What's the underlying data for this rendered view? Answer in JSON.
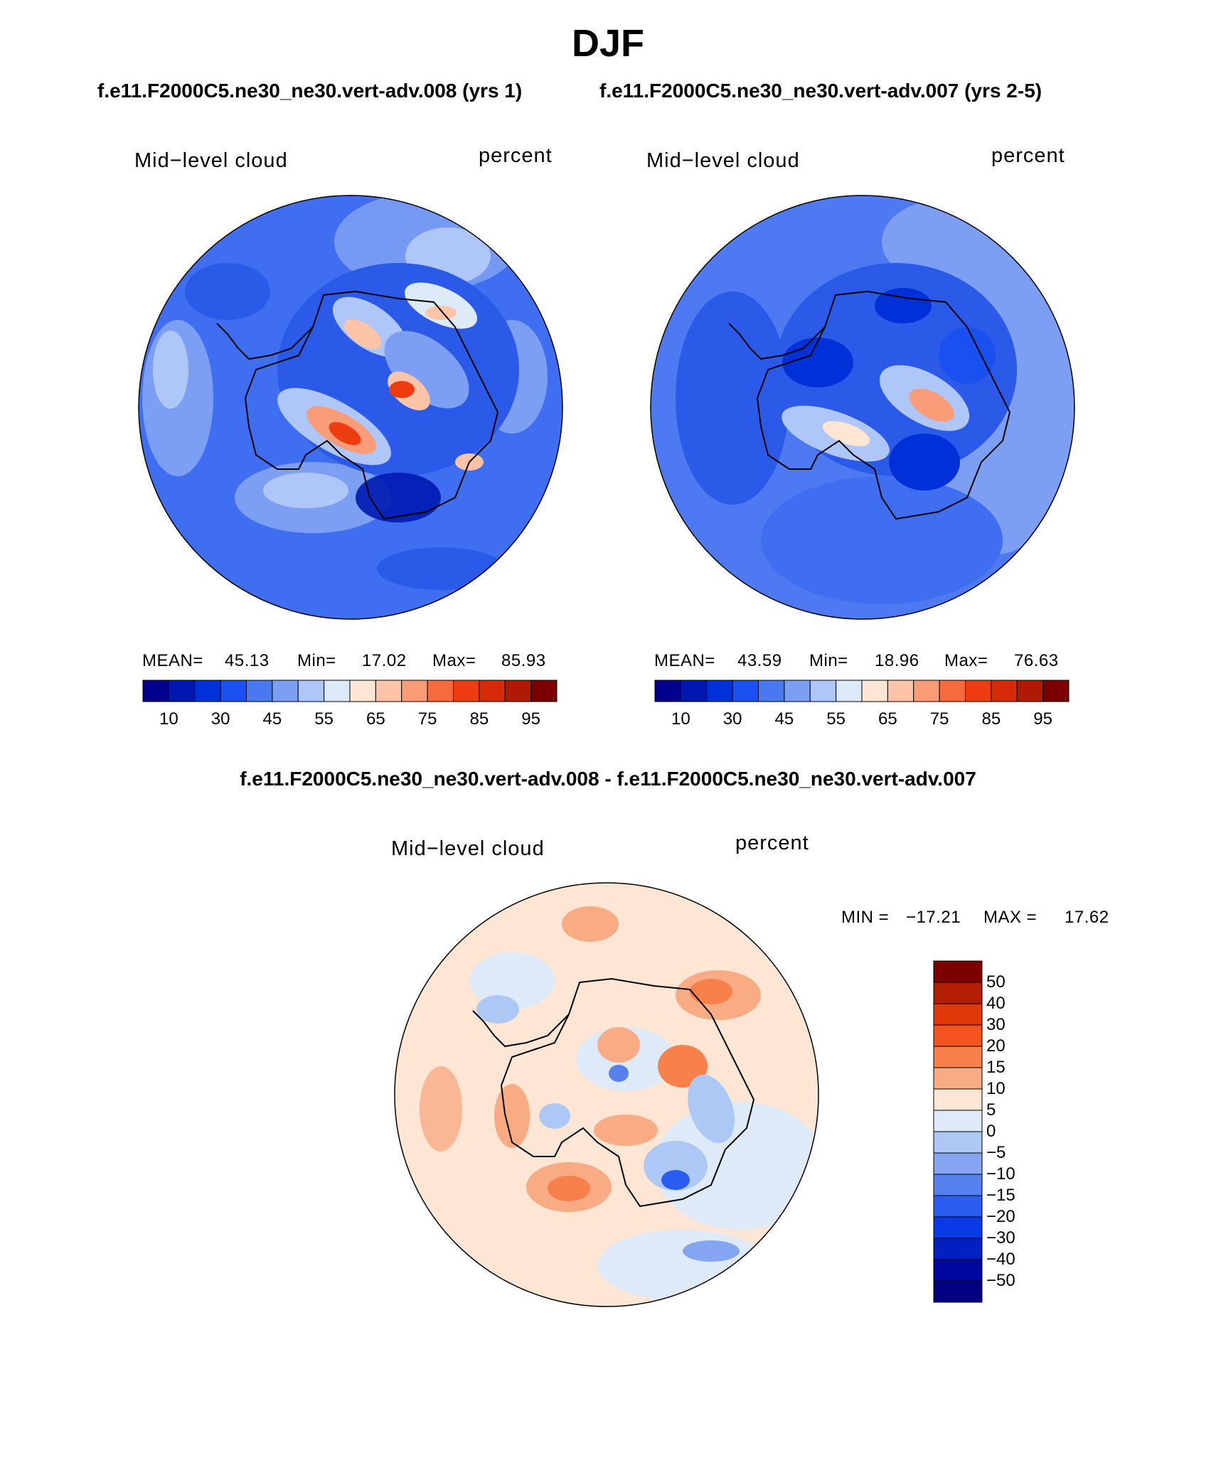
{
  "title": "DJF",
  "case_titles": {
    "left": "f.e11.F2000C5.ne30_ne30.vert-adv.008 (yrs 1)",
    "right": "f.e11.F2000C5.ne30_ne30.vert-adv.007 (yrs 2-5)"
  },
  "diff_title": "f.e11.F2000C5.ne30_ne30.vert-adv.008 - f.e11.F2000C5.ne30_ne30.vert-adv.007",
  "panels": [
    {
      "variable": "Mid−level cloud",
      "units": "percent",
      "stats": {
        "mean_label": "MEAN=",
        "mean": "45.13",
        "min_label": "Min=",
        "min": "17.02",
        "max_label": "Max=",
        "max": "85.93"
      }
    },
    {
      "variable": "Mid−level cloud",
      "units": "percent",
      "stats": {
        "mean_label": "MEAN=",
        "mean": "43.59",
        "min_label": "Min=",
        "min": "18.96",
        "max_label": "Max=",
        "max": "76.63"
      }
    },
    {
      "variable": "Mid−level cloud",
      "units": "percent",
      "stats": {
        "min_label": "MIN =",
        "min": "−17.21",
        "max_label": "MAX =",
        "max": "17.62"
      }
    }
  ],
  "abs_colorbar": {
    "colors": [
      "#00008c",
      "#0018b0",
      "#0030d8",
      "#1a50f0",
      "#4a78f0",
      "#7c9ff4",
      "#aec6f8",
      "#ddeaf8",
      "#fde6d2",
      "#fdc4a8",
      "#fa9c78",
      "#f66a3c",
      "#ed3c10",
      "#d42a08",
      "#ae1a04",
      "#7d0000"
    ],
    "tick_labels": [
      "10",
      "30",
      "45",
      "55",
      "65",
      "75",
      "85",
      "95"
    ]
  },
  "diff_colorbar": {
    "colors": [
      "#7d0000",
      "#b21e04",
      "#e03806",
      "#f45520",
      "#f8804a",
      "#f9ab84",
      "#fde6d4",
      "#deeaf8",
      "#aec8f6",
      "#84a6f2",
      "#5680ee",
      "#2a5cf0",
      "#0a3ae6",
      "#0020c0",
      "#0006a0",
      "#000080"
    ],
    "tick_labels": [
      "50",
      "40",
      "30",
      "20",
      "15",
      "10",
      "5",
      "0",
      "−5",
      "−10",
      "−15",
      "−20",
      "−30",
      "−40",
      "−50"
    ]
  },
  "colors": {
    "ocean_abs_left": "#3f6ef0",
    "ocean_abs_right": "#4d7af0",
    "diff_background": "#fde6d4"
  }
}
